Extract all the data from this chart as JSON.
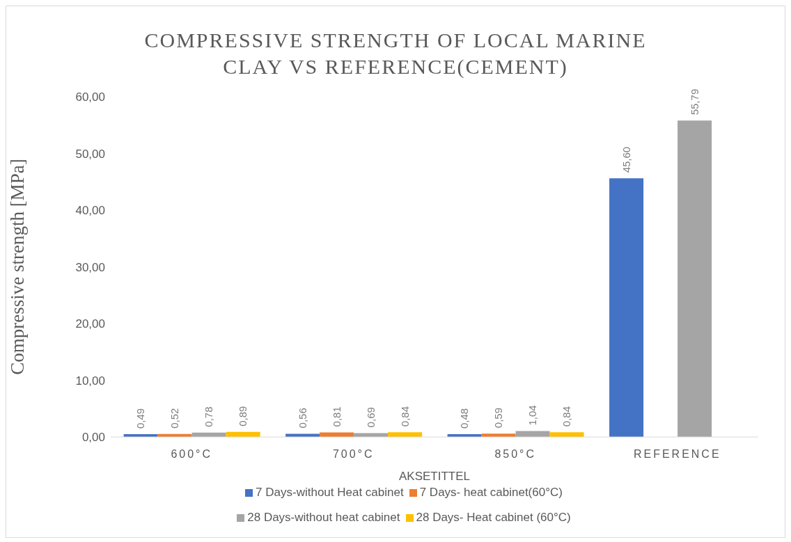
{
  "chart_data": {
    "type": "bar",
    "title": "COMPRESSIVE STRENGTH OF LOCAL MARINE CLAY VS REFERENCE(CEMENT)",
    "xlabel": "AKSETITTEL",
    "ylabel": "Compressive strength [MPa]",
    "categories": [
      "600°C",
      "700°C",
      "850°C",
      "REFERENCE"
    ],
    "series": [
      {
        "name": "7 Days-without Heat cabinet",
        "color": "#4472c4",
        "values": [
          0.49,
          0.56,
          0.48,
          45.6
        ],
        "value_labels": [
          "0,49",
          "0,56",
          "0,48",
          "45,60"
        ]
      },
      {
        "name": "7 Days- heat cabinet(60°C)",
        "color": "#ed7d31",
        "values": [
          0.52,
          0.81,
          0.59,
          null
        ],
        "value_labels": [
          "0,52",
          "0,81",
          "0,59",
          null
        ]
      },
      {
        "name": "28 Days-without heat cabinet",
        "color": "#a5a5a5",
        "values": [
          0.78,
          0.69,
          1.04,
          55.79
        ],
        "value_labels": [
          "0,78",
          "0,69",
          "1,04",
          "55,79"
        ]
      },
      {
        "name": "28 Days- Heat cabinet (60°C)",
        "color": "#ffc000",
        "values": [
          0.89,
          0.84,
          0.84,
          null
        ],
        "value_labels": [
          "0,89",
          "0,84",
          "0,84",
          null
        ]
      }
    ],
    "ylim": [
      0,
      60
    ],
    "yticks": [
      {
        "value": 0,
        "label": "0,00"
      },
      {
        "value": 10,
        "label": "10,00"
      },
      {
        "value": 20,
        "label": "20,00"
      },
      {
        "value": 30,
        "label": "30,00"
      },
      {
        "value": 40,
        "label": "40,00"
      },
      {
        "value": 50,
        "label": "50,00"
      },
      {
        "value": 60,
        "label": "60,00"
      }
    ],
    "legend": "bottom"
  }
}
